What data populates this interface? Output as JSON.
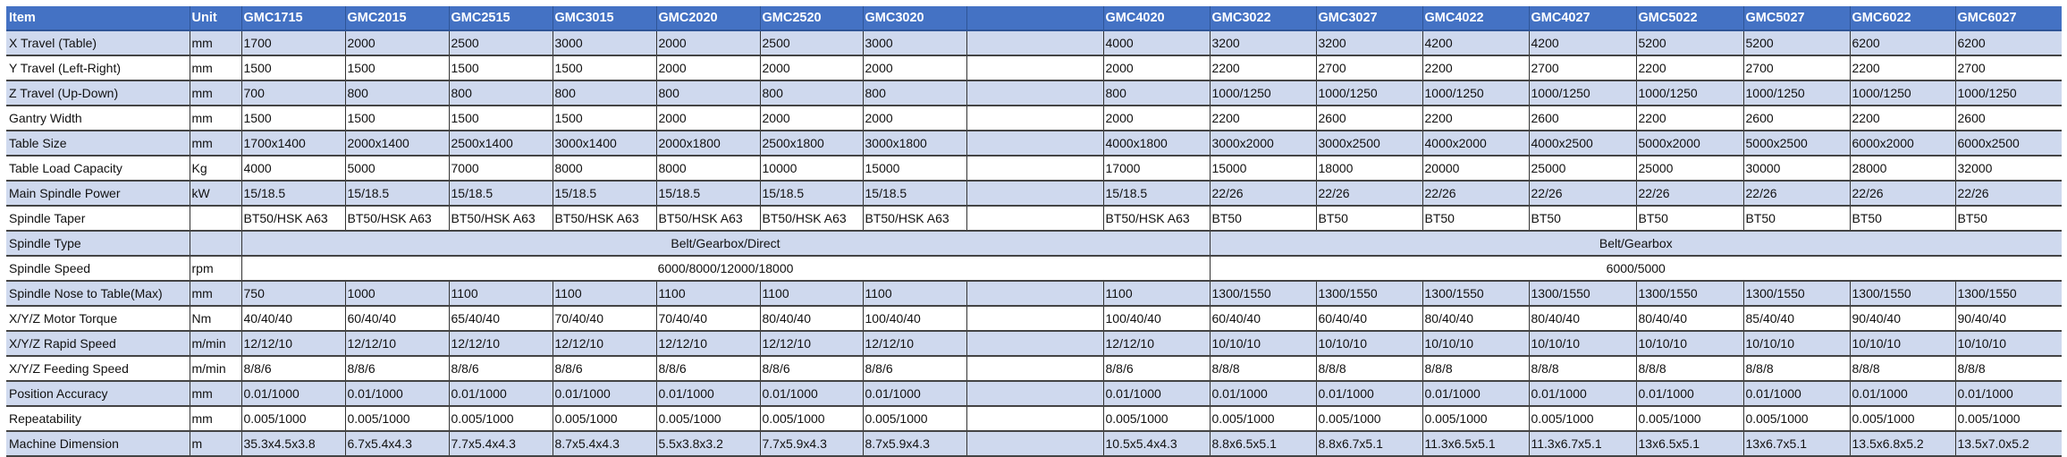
{
  "header": {
    "item": "Item",
    "unit": "Unit",
    "models": [
      "GMC1715",
      "GMC2015",
      "GMC2515",
      "GMC3015",
      "GMC2020",
      "GMC2520",
      "GMC3020",
      "",
      "GMC4020",
      "GMC3022",
      "GMC3027",
      "GMC4022",
      "GMC4027",
      "GMC5022",
      "GMC5027",
      "GMC6022",
      "GMC6027"
    ]
  },
  "colors": {
    "header_bg": "#4472c4",
    "shaded_row": "#cfd9ee",
    "header_text": "#ffffff"
  },
  "rows": [
    {
      "item": "X Travel (Table)",
      "unit": "mm",
      "values": [
        "1700",
        "2000",
        "2500",
        "3000",
        "2000",
        "2500",
        "3000",
        "",
        "4000",
        "3200",
        "3200",
        "4200",
        "4200",
        "5200",
        "5200",
        "6200",
        "6200"
      ]
    },
    {
      "item": "Y Travel (Left-Right)",
      "unit": "mm",
      "values": [
        "1500",
        "1500",
        "1500",
        "1500",
        "2000",
        "2000",
        "2000",
        "",
        "2000",
        "2200",
        "2700",
        "2200",
        "2700",
        "2200",
        "2700",
        "2200",
        "2700"
      ]
    },
    {
      "item": "Z Travel (Up-Down)",
      "unit": "mm",
      "values": [
        "700",
        "800",
        "800",
        "800",
        "800",
        "800",
        "800",
        "",
        "800",
        "1000/1250",
        "1000/1250",
        "1000/1250",
        "1000/1250",
        "1000/1250",
        "1000/1250",
        "1000/1250",
        "1000/1250"
      ]
    },
    {
      "item": "Gantry Width",
      "unit": "mm",
      "values": [
        "1500",
        "1500",
        "1500",
        "1500",
        "2000",
        "2000",
        "2000",
        "",
        "2000",
        "2200",
        "2600",
        "2200",
        "2600",
        "2200",
        "2600",
        "2200",
        "2600"
      ]
    },
    {
      "item": "Table Size",
      "unit": "mm",
      "values": [
        "1700x1400",
        "2000x1400",
        "2500x1400",
        "3000x1400",
        "2000x1800",
        "2500x1800",
        "3000x1800",
        "",
        "4000x1800",
        "3000x2000",
        "3000x2500",
        "4000x2000",
        "4000x2500",
        "5000x2000",
        "5000x2500",
        "6000x2000",
        "6000x2500"
      ]
    },
    {
      "item": "Table Load Capacity",
      "unit": "Kg",
      "values": [
        "4000",
        "5000",
        "7000",
        "8000",
        "8000",
        "10000",
        "15000",
        "",
        "17000",
        "15000",
        "18000",
        "20000",
        "25000",
        "25000",
        "30000",
        "28000",
        "32000"
      ]
    },
    {
      "item": "Main Spindle Power",
      "unit": "kW",
      "values": [
        "15/18.5",
        "15/18.5",
        "15/18.5",
        "15/18.5",
        "15/18.5",
        "15/18.5",
        "15/18.5",
        "",
        "15/18.5",
        "22/26",
        "22/26",
        "22/26",
        "22/26",
        "22/26",
        "22/26",
        "22/26",
        "22/26"
      ]
    },
    {
      "item": "Spindle Taper",
      "unit": "",
      "values": [
        "BT50/HSK A63",
        "BT50/HSK A63",
        "BT50/HSK A63",
        "BT50/HSK A63",
        "BT50/HSK A63",
        "BT50/HSK A63",
        "BT50/HSK A63",
        "",
        "BT50/HSK A63",
        "BT50",
        "BT50",
        "BT50",
        "BT50",
        "BT50",
        "BT50",
        "BT50",
        "BT50"
      ]
    },
    {
      "item": "Spindle Type",
      "unit": "",
      "merged": [
        "Belt/Gearbox/Direct",
        "Belt/Gearbox"
      ]
    },
    {
      "item": "Spindle Speed",
      "unit": "rpm",
      "merged": [
        "6000/8000/12000/18000",
        "6000/5000"
      ]
    },
    {
      "item": "Spindle Nose to Table(Max)",
      "unit": "mm",
      "values": [
        "750",
        "1000",
        "1100",
        "1100",
        "1100",
        "1100",
        "1100",
        "",
        "1100",
        "1300/1550",
        "1300/1550",
        "1300/1550",
        "1300/1550",
        "1300/1550",
        "1300/1550",
        "1300/1550",
        "1300/1550"
      ]
    },
    {
      "item": "X/Y/Z Motor Torque",
      "unit": "Nm",
      "values": [
        "40/40/40",
        "60/40/40",
        "65/40/40",
        "70/40/40",
        "70/40/40",
        "80/40/40",
        "100/40/40",
        "",
        "100/40/40",
        "60/40/40",
        "60/40/40",
        "80/40/40",
        "80/40/40",
        "80/40/40",
        "85/40/40",
        "90/40/40",
        "90/40/40"
      ]
    },
    {
      "item": "X/Y/Z Rapid Speed",
      "unit": "m/min",
      "values": [
        "12/12/10",
        "12/12/10",
        "12/12/10",
        "12/12/10",
        "12/12/10",
        "12/12/10",
        "12/12/10",
        "",
        "12/12/10",
        "10/10/10",
        "10/10/10",
        "10/10/10",
        "10/10/10",
        "10/10/10",
        "10/10/10",
        "10/10/10",
        "10/10/10"
      ]
    },
    {
      "item": "X/Y/Z Feeding Speed",
      "unit": "m/min",
      "values": [
        "8/8/6",
        "8/8/6",
        "8/8/6",
        "8/8/6",
        "8/8/6",
        "8/8/6",
        "8/8/6",
        "",
        "8/8/6",
        "8/8/8",
        "8/8/8",
        "8/8/8",
        "8/8/8",
        "8/8/8",
        "8/8/8",
        "8/8/8",
        "8/8/8"
      ]
    },
    {
      "item": "Position Accuracy",
      "unit": "mm",
      "values": [
        "0.01/1000",
        "0.01/1000",
        "0.01/1000",
        "0.01/1000",
        "0.01/1000",
        "0.01/1000",
        "0.01/1000",
        "",
        "0.01/1000",
        "0.01/1000",
        "0.01/1000",
        "0.01/1000",
        "0.01/1000",
        "0.01/1000",
        "0.01/1000",
        "0.01/1000",
        "0.01/1000"
      ]
    },
    {
      "item": "Repeatability",
      "unit": "mm",
      "values": [
        "0.005/1000",
        "0.005/1000",
        "0.005/1000",
        "0.005/1000",
        "0.005/1000",
        "0.005/1000",
        "0.005/1000",
        "",
        "0.005/1000",
        "0.005/1000",
        "0.005/1000",
        "0.005/1000",
        "0.005/1000",
        "0.005/1000",
        "0.005/1000",
        "0.005/1000",
        "0.005/1000"
      ]
    },
    {
      "item": "Machine Dimension",
      "unit": "m",
      "values": [
        "35.3x4.5x3.8",
        "6.7x5.4x4.3",
        "7.7x5.4x4.3",
        "8.7x5.4x4.3",
        "5.5x3.8x3.2",
        "7.7x5.9x4.3",
        "8.7x5.9x4.3",
        "",
        "10.5x5.4x4.3",
        "8.8x6.5x5.1",
        "8.8x6.7x5.1",
        "11.3x6.5x5.1",
        "11.3x6.7x5.1",
        "13x6.5x5.1",
        "13x6.7x5.1",
        "13.5x6.8x5.2",
        "13.5x7.0x5.2"
      ]
    }
  ]
}
